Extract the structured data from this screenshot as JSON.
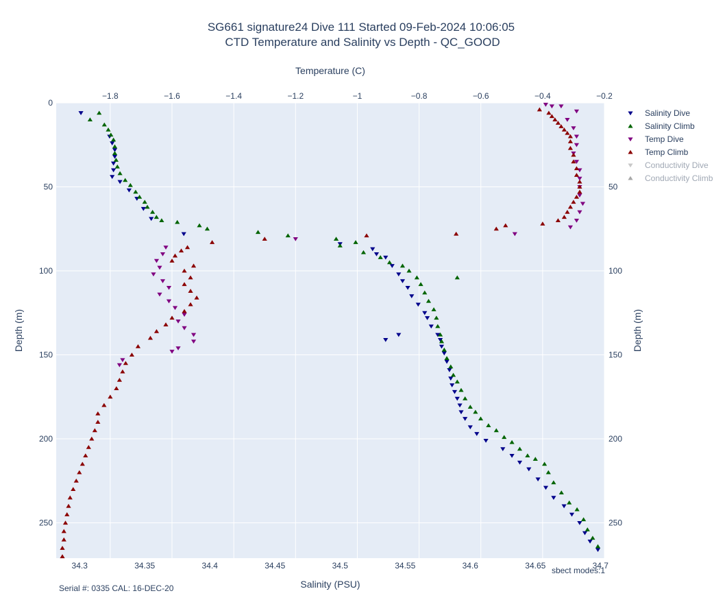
{
  "chart_data": {
    "type": "scatter",
    "title": "SG661 signature24 Dive 111 Started 09-Feb-2024 10:06:05",
    "subtitle": "CTD Temperature and Salinity vs Depth - QC_GOOD",
    "x_bottom": {
      "label": "Salinity (PSU)",
      "range": [
        34.282,
        34.703
      ],
      "ticks": [
        34.3,
        34.35,
        34.4,
        34.45,
        34.5,
        34.55,
        34.6,
        34.65,
        34.7
      ],
      "tick_labels": [
        "34.3",
        "34.35",
        "34.4",
        "34.45",
        "34.5",
        "34.55",
        "34.6",
        "34.65",
        "34.7"
      ]
    },
    "x_top": {
      "label": "Temperature (C)",
      "range": [
        -1.975,
        -0.2
      ],
      "ticks": [
        -1.8,
        -1.6,
        -1.4,
        -1.2,
        -1.0,
        -0.8,
        -0.6,
        -0.4,
        -0.2
      ],
      "tick_labels": [
        "−1.8",
        "−1.6",
        "−1.4",
        "−1.2",
        "−1",
        "−0.8",
        "−0.6",
        "−0.4",
        "−0.2"
      ]
    },
    "y": {
      "label": "Depth (m)",
      "range": [
        0,
        271
      ],
      "reversed": true,
      "ticks": [
        0,
        50,
        100,
        150,
        200,
        250
      ],
      "tick_labels": [
        "0",
        "50",
        "100",
        "150",
        "200",
        "250"
      ],
      "ticks_right": [
        50,
        100,
        150,
        200,
        250
      ],
      "tick_labels_right": [
        "50",
        "100",
        "150",
        "200",
        "250"
      ]
    },
    "grid": true,
    "legend_position": "right",
    "series": [
      {
        "name": "Salinity Dive",
        "axis": "salinity",
        "marker": "triangle-down",
        "color": "#00008b",
        "points": [
          [
            34.301,
            6
          ],
          [
            34.323,
            20
          ],
          [
            34.325,
            24
          ],
          [
            34.327,
            28
          ],
          [
            34.327,
            32
          ],
          [
            34.326,
            36
          ],
          [
            34.326,
            40
          ],
          [
            34.325,
            44
          ],
          [
            34.331,
            47
          ],
          [
            34.338,
            52
          ],
          [
            34.344,
            57
          ],
          [
            34.349,
            63
          ],
          [
            34.355,
            69
          ],
          [
            34.38,
            78
          ],
          [
            34.5,
            84
          ],
          [
            34.525,
            87
          ],
          [
            34.528,
            90
          ],
          [
            34.535,
            92
          ],
          [
            34.54,
            97
          ],
          [
            34.545,
            102
          ],
          [
            34.548,
            106
          ],
          [
            34.552,
            110
          ],
          [
            34.555,
            115
          ],
          [
            34.56,
            120
          ],
          [
            34.565,
            125
          ],
          [
            34.567,
            128
          ],
          [
            34.57,
            133
          ],
          [
            34.575,
            138
          ],
          [
            34.577,
            141
          ],
          [
            34.545,
            138
          ],
          [
            34.535,
            141
          ],
          [
            34.578,
            145
          ],
          [
            34.58,
            149
          ],
          [
            34.582,
            154
          ],
          [
            34.584,
            159
          ],
          [
            34.585,
            164
          ],
          [
            34.586,
            168
          ],
          [
            34.588,
            172
          ],
          [
            34.59,
            176
          ],
          [
            34.592,
            180
          ],
          [
            34.593,
            184
          ],
          [
            34.596,
            188
          ],
          [
            34.6,
            193
          ],
          [
            34.605,
            197
          ],
          [
            34.612,
            201
          ],
          [
            34.625,
            206
          ],
          [
            34.632,
            210
          ],
          [
            34.638,
            214
          ],
          [
            34.645,
            218
          ],
          [
            34.652,
            224
          ],
          [
            34.658,
            229
          ],
          [
            34.664,
            235
          ],
          [
            34.672,
            240
          ],
          [
            34.678,
            245
          ],
          [
            34.684,
            250
          ],
          [
            34.688,
            256
          ],
          [
            34.692,
            261
          ],
          [
            34.698,
            266
          ]
        ]
      },
      {
        "name": "Salinity Climb",
        "axis": "salinity",
        "marker": "triangle-up",
        "color": "#006400",
        "points": [
          [
            34.315,
            6
          ],
          [
            34.308,
            10
          ],
          [
            34.319,
            13
          ],
          [
            34.322,
            16
          ],
          [
            34.324,
            19
          ],
          [
            34.326,
            22
          ],
          [
            34.327,
            26
          ],
          [
            34.327,
            30
          ],
          [
            34.328,
            34
          ],
          [
            34.329,
            38
          ],
          [
            34.331,
            42
          ],
          [
            34.335,
            46
          ],
          [
            34.339,
            49
          ],
          [
            34.343,
            53
          ],
          [
            34.346,
            56
          ],
          [
            34.35,
            59
          ],
          [
            34.352,
            62
          ],
          [
            34.356,
            65
          ],
          [
            34.359,
            68
          ],
          [
            34.363,
            70
          ],
          [
            34.375,
            71
          ],
          [
            34.392,
            73
          ],
          [
            34.398,
            75
          ],
          [
            34.437,
            77
          ],
          [
            34.46,
            79
          ],
          [
            34.497,
            81
          ],
          [
            34.512,
            83
          ],
          [
            34.5,
            85
          ],
          [
            34.518,
            89
          ],
          [
            34.531,
            92
          ],
          [
            34.538,
            95
          ],
          [
            34.548,
            97
          ],
          [
            34.553,
            100
          ],
          [
            34.559,
            104
          ],
          [
            34.59,
            104
          ],
          [
            34.562,
            108
          ],
          [
            34.565,
            113
          ],
          [
            34.568,
            118
          ],
          [
            34.572,
            123
          ],
          [
            34.574,
            128
          ],
          [
            34.575,
            133
          ],
          [
            34.577,
            138
          ],
          [
            34.578,
            142
          ],
          [
            34.58,
            147
          ],
          [
            34.582,
            152
          ],
          [
            34.585,
            157
          ],
          [
            34.587,
            162
          ],
          [
            34.59,
            166
          ],
          [
            34.593,
            171
          ],
          [
            34.596,
            176
          ],
          [
            34.6,
            181
          ],
          [
            34.604,
            184
          ],
          [
            34.608,
            188
          ],
          [
            34.614,
            192
          ],
          [
            34.62,
            195
          ],
          [
            34.626,
            199
          ],
          [
            34.632,
            202
          ],
          [
            34.638,
            206
          ],
          [
            34.644,
            210
          ],
          [
            34.65,
            212
          ],
          [
            34.657,
            215
          ],
          [
            34.66,
            220
          ],
          [
            34.664,
            226
          ],
          [
            34.67,
            232
          ],
          [
            34.676,
            238
          ],
          [
            34.682,
            242
          ],
          [
            34.687,
            248
          ],
          [
            34.69,
            254
          ],
          [
            34.694,
            259
          ],
          [
            34.698,
            264
          ]
        ]
      },
      {
        "name": "Temp Dive",
        "axis": "temperature",
        "marker": "triangle-down",
        "color": "#800080",
        "points": [
          [
            -0.39,
            1
          ],
          [
            -0.37,
            2
          ],
          [
            -0.34,
            2
          ],
          [
            -0.29,
            5
          ],
          [
            -0.32,
            10
          ],
          [
            -0.3,
            15
          ],
          [
            -0.29,
            20
          ],
          [
            -0.29,
            25
          ],
          [
            -0.3,
            30
          ],
          [
            -0.29,
            35
          ],
          [
            -0.28,
            40
          ],
          [
            -0.28,
            45
          ],
          [
            -0.28,
            50
          ],
          [
            -0.28,
            55
          ],
          [
            -0.27,
            60
          ],
          [
            -0.28,
            65
          ],
          [
            -0.29,
            70
          ],
          [
            -0.31,
            74
          ],
          [
            -0.49,
            78
          ],
          [
            -1.2,
            81
          ],
          [
            -1.62,
            86
          ],
          [
            -1.63,
            90
          ],
          [
            -1.65,
            94
          ],
          [
            -1.64,
            98
          ],
          [
            -1.66,
            102
          ],
          [
            -1.63,
            106
          ],
          [
            -1.61,
            110
          ],
          [
            -1.64,
            114
          ],
          [
            -1.61,
            118
          ],
          [
            -1.59,
            122
          ],
          [
            -1.56,
            126
          ],
          [
            -1.58,
            130
          ],
          [
            -1.56,
            134
          ],
          [
            -1.53,
            138
          ],
          [
            -1.53,
            142
          ],
          [
            -1.58,
            146
          ],
          [
            -1.6,
            148
          ],
          [
            -1.76,
            153
          ],
          [
            -1.77,
            156
          ]
        ]
      },
      {
        "name": "Temp Climb",
        "axis": "temperature",
        "marker": "triangle-up",
        "color": "#8b0000",
        "points": [
          [
            -0.41,
            4
          ],
          [
            -0.38,
            6
          ],
          [
            -0.37,
            8
          ],
          [
            -0.36,
            10
          ],
          [
            -0.35,
            12
          ],
          [
            -0.34,
            14
          ],
          [
            -0.33,
            16
          ],
          [
            -0.32,
            18
          ],
          [
            -0.31,
            20
          ],
          [
            -0.31,
            23
          ],
          [
            -0.31,
            27
          ],
          [
            -0.3,
            31
          ],
          [
            -0.3,
            35
          ],
          [
            -0.29,
            39
          ],
          [
            -0.29,
            43
          ],
          [
            -0.28,
            47
          ],
          [
            -0.28,
            50
          ],
          [
            -0.28,
            53
          ],
          [
            -0.29,
            56
          ],
          [
            -0.3,
            59
          ],
          [
            -0.31,
            62
          ],
          [
            -0.32,
            65
          ],
          [
            -0.33,
            68
          ],
          [
            -0.35,
            70
          ],
          [
            -0.4,
            72
          ],
          [
            -0.52,
            73
          ],
          [
            -0.55,
            75
          ],
          [
            -0.68,
            78
          ],
          [
            -0.97,
            79
          ],
          [
            -1.3,
            81
          ],
          [
            -1.47,
            83
          ],
          [
            -1.55,
            86
          ],
          [
            -1.57,
            88
          ],
          [
            -1.59,
            91
          ],
          [
            -1.6,
            94
          ],
          [
            -1.53,
            97
          ],
          [
            -1.56,
            100
          ],
          [
            -1.54,
            104
          ],
          [
            -1.56,
            108
          ],
          [
            -1.54,
            112
          ],
          [
            -1.52,
            116
          ],
          [
            -1.54,
            120
          ],
          [
            -1.56,
            124
          ],
          [
            -1.6,
            128
          ],
          [
            -1.62,
            132
          ],
          [
            -1.65,
            136
          ],
          [
            -1.67,
            140
          ],
          [
            -1.71,
            145
          ],
          [
            -1.73,
            150
          ],
          [
            -1.75,
            155
          ],
          [
            -1.76,
            160
          ],
          [
            -1.77,
            165
          ],
          [
            -1.78,
            170
          ],
          [
            -1.8,
            175
          ],
          [
            -1.82,
            180
          ],
          [
            -1.84,
            185
          ],
          [
            -1.84,
            190
          ],
          [
            -1.85,
            195
          ],
          [
            -1.86,
            200
          ],
          [
            -1.87,
            205
          ],
          [
            -1.88,
            210
          ],
          [
            -1.89,
            215
          ],
          [
            -1.9,
            220
          ],
          [
            -1.91,
            225
          ],
          [
            -1.92,
            230
          ],
          [
            -1.93,
            235
          ],
          [
            -1.935,
            240
          ],
          [
            -1.94,
            245
          ],
          [
            -1.945,
            250
          ],
          [
            -1.95,
            255
          ],
          [
            -1.95,
            260
          ],
          [
            -1.955,
            265
          ],
          [
            -1.955,
            270
          ]
        ]
      },
      {
        "name": "Conductivity Dive",
        "axis": "none",
        "marker": "triangle-down",
        "color": "#c8c8c8",
        "hidden": true,
        "points": []
      },
      {
        "name": "Conductivity Climb",
        "axis": "none",
        "marker": "triangle-up",
        "color": "#a8a8a8",
        "hidden": true,
        "points": []
      }
    ],
    "annotations": {
      "corner_note": "sbect modes:1",
      "footer_note": "Serial #: 0335  CAL: 16-DEC-20"
    }
  }
}
